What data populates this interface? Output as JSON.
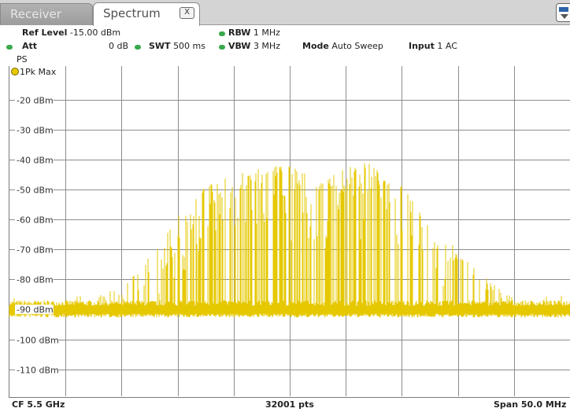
{
  "tabs": [
    {
      "label": "Receiver",
      "active": false
    },
    {
      "label": "Spectrum",
      "active": true
    }
  ],
  "tab_close_glyph": "X",
  "settings": {
    "ref_level_label": "Ref Level",
    "ref_level_value": "-15.00 dBm",
    "att_label": "Att",
    "att_value": "0 dB",
    "swt_label": "SWT",
    "swt_value": "500 ms",
    "rbw_label": "RBW",
    "rbw_value": "1 MHz",
    "vbw_label": "VBW",
    "vbw_value": "3 MHz",
    "mode_label": "Mode",
    "mode_value": "Auto Sweep",
    "input_label": "Input",
    "input_value": "1 AC",
    "preamp_label": "PS"
  },
  "trace_label": "1Pk Max",
  "footer": {
    "center_freq": "CF 5.5 GHz",
    "points": "32001 pts",
    "span": "Span 50.0 MHz"
  },
  "colors": {
    "trace": "#e6c800",
    "grid": "#8c8c8c",
    "status_dot": "#39a84b"
  },
  "chart_data": {
    "type": "line",
    "y_tick_labels": [
      "-20 dBm",
      "-30 dBm",
      "-40 dBm",
      "-50 dBm",
      "-60 dBm",
      "-70 dBm",
      "-80 dBm",
      "-90 dBm",
      "-100 dBm",
      "-110 dBm"
    ],
    "ylim": [
      -119,
      -13
    ],
    "xlim": [
      5475,
      5525
    ],
    "x_unit": "MHz",
    "grid": true,
    "noise_floor_dbm": -90,
    "series": [
      {
        "x": [
          5475,
          5480,
          5482,
          5484,
          5485.5,
          5487,
          5488.5,
          5490,
          5491.5,
          5493,
          5495,
          5497,
          5499,
          5500,
          5501,
          5502.5,
          5504,
          5505.5,
          5507,
          5508.5,
          5510,
          5511.5,
          5513,
          5515,
          5517,
          5519,
          5521,
          5525
        ],
        "values": [
          -90,
          -90,
          -87,
          -83,
          -80,
          -74,
          -67,
          -59,
          -52,
          -48,
          -45,
          -43,
          -42,
          -42,
          -44,
          -46,
          -45,
          -42,
          -41,
          -43,
          -48,
          -56,
          -62,
          -70,
          -78,
          -84,
          -88,
          -90
        ]
      }
    ]
  }
}
